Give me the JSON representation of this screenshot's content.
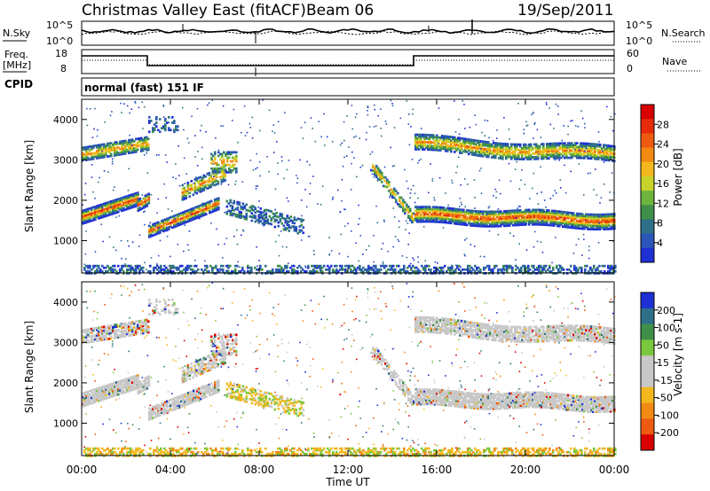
{
  "header": {
    "title": "Christmas Valley East (fitACF)",
    "beam": "Beam 06",
    "date": "19/Sep/2011"
  },
  "noise_panel": {
    "left_label": "N.Sky",
    "right_label": "N.Search",
    "tick_top": "10^5",
    "tick_bottom": "10^0"
  },
  "freq_panel": {
    "left_label_1": "Freq.",
    "left_label_2": "[MHz]",
    "right_label": "Nave",
    "left_ticks": [
      "18",
      "8"
    ],
    "right_ticks": [
      "60",
      "0"
    ]
  },
  "cpid": {
    "label": "CPID",
    "mode": "normal (fast) 151 IF"
  },
  "colors": {
    "power": [
      "#1f2fd6",
      "#2b55b8",
      "#2e6f8a",
      "#3f8f4a",
      "#6cb43c",
      "#c8d22c",
      "#f2b81e",
      "#f28a14",
      "#ee5a10",
      "#e62a0a",
      "#d80000"
    ],
    "velocity": [
      "#d80000",
      "#ee5a10",
      "#f28a14",
      "#f2b81e",
      "#c8c8c8",
      "#c8c8c8",
      "#7cc83c",
      "#3f8f4a",
      "#2e6f8a",
      "#1f2fd6"
    ]
  },
  "chart_data": [
    {
      "type": "heatmap",
      "name": "Power",
      "ylabel": "Slant Range [km]",
      "yticks": [
        "1000",
        "2000",
        "3000",
        "4000"
      ],
      "ylim": [
        200,
        4500
      ],
      "xlim": [
        "00:00",
        "24:00"
      ],
      "colorbar": {
        "label": "Power [dB]",
        "ticks": [
          "4",
          "8",
          "12",
          "16",
          "20",
          "24",
          "28"
        ]
      }
    },
    {
      "type": "heatmap",
      "name": "Velocity",
      "ylabel": "Slant Range [km]",
      "yticks": [
        "1000",
        "2000",
        "3000",
        "4000"
      ],
      "ylim": [
        200,
        4500
      ],
      "xlim": [
        "00:00",
        "24:00"
      ],
      "xticks": [
        "00:00",
        "04:00",
        "08:00",
        "12:00",
        "16:00",
        "20:00",
        "00:00"
      ],
      "xlabel": "Time UT",
      "colorbar": {
        "label": "Velocity [m s-1]",
        "ticks": [
          "200",
          "100",
          "50",
          "15",
          "-15",
          "-50",
          "-100",
          "-200"
        ]
      }
    }
  ]
}
